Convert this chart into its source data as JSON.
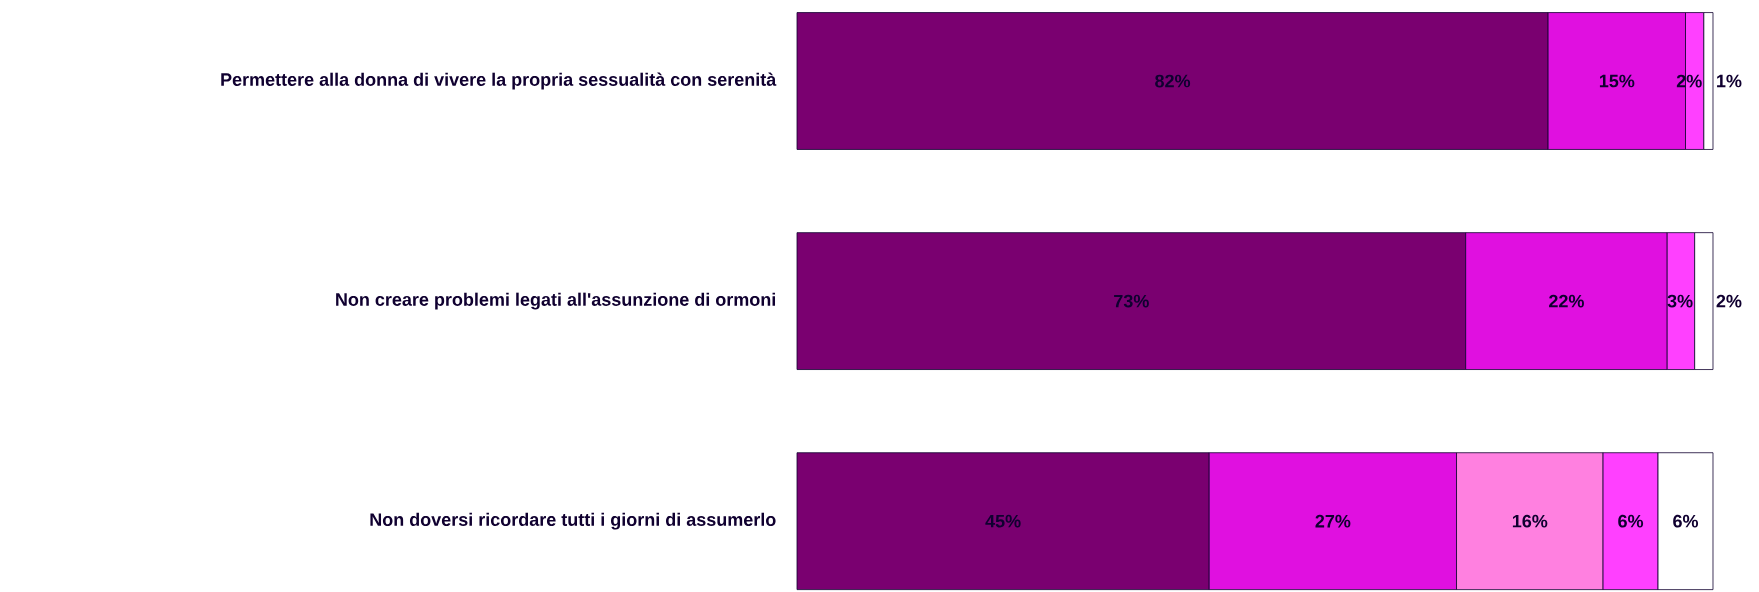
{
  "chart_data": {
    "type": "bar",
    "orientation": "horizontal",
    "stacked": true,
    "categories": [
      "Permettere alla donna di vivere la propria sessualità con serenità",
      "Non creare problemi legati all'assunzione di ormoni",
      "Non doversi ricordare tutti i giorni di assumerlo"
    ],
    "xlim": [
      0,
      100
    ],
    "series": [
      {
        "color": "#7a0070",
        "values": [
          82,
          73,
          45
        ],
        "value_labels": [
          "82%",
          "73%",
          "45%"
        ]
      },
      {
        "color": "#e010e0",
        "values": [
          15,
          22,
          27
        ],
        "value_labels": [
          "15%",
          "22%",
          "27%"
        ]
      },
      {
        "color": "#ff80e0",
        "values": [
          null,
          null,
          16
        ],
        "value_labels": [
          null,
          null,
          "16%"
        ]
      },
      {
        "color": "#ff40ff",
        "values": [
          2,
          3,
          6
        ],
        "value_labels": [
          "2%",
          "3%",
          "6%"
        ]
      },
      {
        "color": "#ffffff",
        "values": [
          1,
          2,
          6
        ],
        "value_labels": [
          "1%",
          "2%",
          "6%"
        ]
      }
    ]
  }
}
